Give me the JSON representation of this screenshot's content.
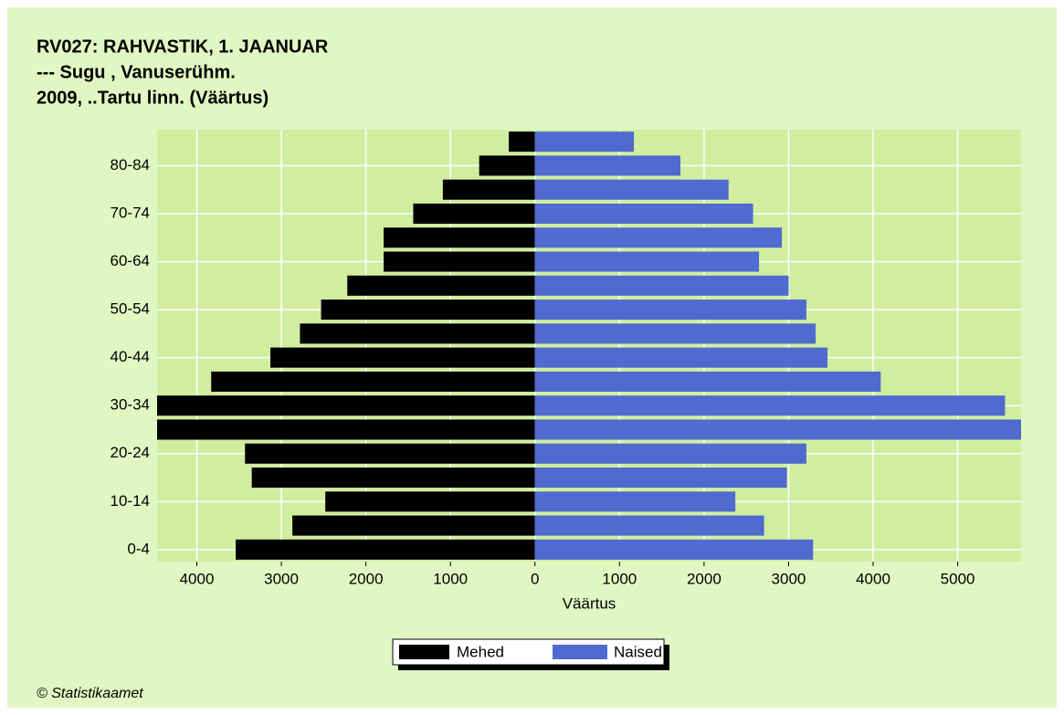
{
  "chart_data": {
    "type": "pyramid",
    "title_lines": [
      "RV027: RAHVASTIK, 1. JAANUAR",
      "--- Sugu , Vanuserühm.",
      "2009, ..Tartu linn. (Väärtus)"
    ],
    "x_label": "Väärtus",
    "categories": [
      "0-4",
      null,
      "10-14",
      null,
      "20-24",
      null,
      "30-34",
      null,
      "40-44",
      null,
      "50-54",
      null,
      "60-64",
      null,
      "70-74",
      null,
      "80-84",
      null
    ],
    "series": [
      {
        "name": "Mehed",
        "color": "#000000",
        "values": [
          -3540,
          -2870,
          -2480,
          -3350,
          -3430,
          -4700,
          -4550,
          -3830,
          -3130,
          -2780,
          -2530,
          -2220,
          -1790,
          -1790,
          -1440,
          -1090,
          -660,
          -310
        ]
      },
      {
        "name": "Naised",
        "color": "#4f6bcf",
        "values": [
          3290,
          2710,
          2370,
          2980,
          3210,
          5800,
          5560,
          4090,
          3460,
          3320,
          3210,
          3000,
          2650,
          2920,
          2580,
          2290,
          1720,
          1170
        ]
      }
    ],
    "xlim": [
      -4470,
      5750
    ],
    "xticks": [
      {
        "value": -4000,
        "label": "4000"
      },
      {
        "value": -3000,
        "label": "3000"
      },
      {
        "value": -2000,
        "label": "2000"
      },
      {
        "value": -1000,
        "label": "1000"
      },
      0,
      1000,
      2000,
      3000,
      4000,
      5000
    ],
    "grid": true,
    "footer": "© Statistikaamet"
  }
}
